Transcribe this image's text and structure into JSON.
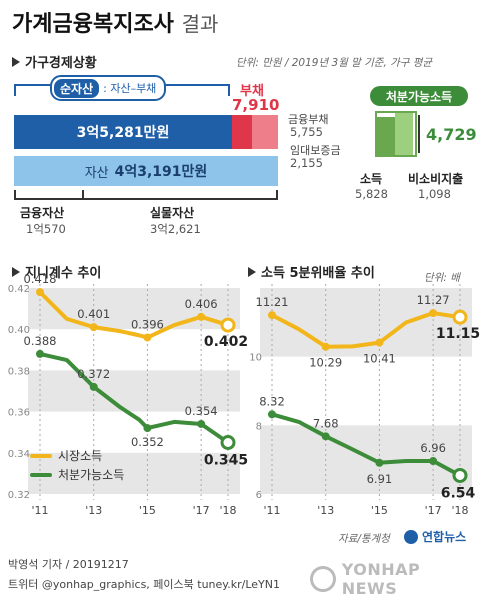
{
  "title": "가계금융복지조사",
  "subtitle": "결과",
  "assets": {
    "section_title": "가구경제상황",
    "note": "단위: 만원 / 2019년 3월 말 기준, 가구 평균",
    "net_assets_label": "순자산",
    "net_assets_formula": ": 자산–부채",
    "net_assets_value": "3억5,281만원",
    "debt_label": "부채",
    "debt_value": "7,910",
    "total_assets_prefix": "자산",
    "total_assets_value": "4억3,191만원",
    "financial_debt_label": "금융부채",
    "financial_debt_value": "5,755",
    "deposit_label": "임대보증금",
    "deposit_value": "2,155",
    "financial_assets_label": "금융자산",
    "financial_assets_value": "1억570",
    "real_assets_label": "실물자산",
    "real_assets_value": "3억2,621",
    "disposable_label": "처분가능소득",
    "disposable_value": "4,729",
    "income_label": "소득",
    "income_value": "5,828",
    "nonconsumption_label": "비소비지출",
    "nonconsumption_value": "1,098"
  },
  "chart_data": [
    {
      "type": "line",
      "title": "지니계수 추이",
      "categories": [
        "'11",
        "'13",
        "'15",
        "'17",
        "'18"
      ],
      "x": [
        2011,
        2013,
        2015,
        2017,
        2018
      ],
      "ylim": [
        0.32,
        0.42
      ],
      "yticks": [
        "0.42",
        "0.40",
        "0.38",
        "0.36",
        "0.34",
        "0.32"
      ],
      "series": [
        {
          "name": "시장소득",
          "color": "#f2b61b",
          "values": [
            0.418,
            0.405,
            0.401,
            0.399,
            0.397,
            0.396,
            0.402,
            0.406,
            0.402
          ],
          "x": [
            2011,
            2012,
            2013,
            2014,
            2014.7,
            2015,
            2016,
            2017,
            2018
          ],
          "labels": {
            "0": "0.418",
            "2": "0.401",
            "5": "0.396",
            "7": "0.406",
            "8": "0.402"
          }
        },
        {
          "name": "처분가능소득",
          "color": "#3c8c3a",
          "values": [
            0.388,
            0.385,
            0.372,
            0.362,
            0.356,
            0.352,
            0.355,
            0.354,
            0.345
          ],
          "x": [
            2011,
            2012,
            2013,
            2014,
            2014.7,
            2015,
            2016,
            2017,
            2018
          ],
          "labels": {
            "0": "0.388",
            "2": "0.372",
            "5": "0.352",
            "7": "0.354",
            "8": "0.345"
          }
        }
      ],
      "legend": "bottom-left"
    },
    {
      "type": "line",
      "title": "소득 5분위배율 추이",
      "unit": "단위: 배",
      "categories": [
        "'11",
        "'13",
        "'15",
        "'17",
        "'18"
      ],
      "x": [
        2011,
        2013,
        2015,
        2017,
        2018
      ],
      "yticks": [
        "10",
        "8",
        "6"
      ],
      "ylim": [
        6,
        12
      ],
      "series": [
        {
          "name": "시장소득",
          "color": "#f2b61b",
          "values": [
            11.21,
            10.8,
            10.29,
            10.3,
            10.41,
            11.0,
            11.27,
            11.15
          ],
          "x": [
            2011,
            2012,
            2013,
            2014,
            2015,
            2016,
            2017,
            2018
          ],
          "labels": {
            "0": "11.21",
            "2": "10.29",
            "4": "10.41",
            "6": "11.27",
            "7": "11.15"
          }
        },
        {
          "name": "처분가능소득",
          "color": "#3c8c3a",
          "values": [
            8.32,
            8.1,
            7.68,
            7.3,
            6.91,
            6.96,
            6.96,
            6.54
          ],
          "x": [
            2011,
            2012,
            2013,
            2014,
            2015,
            2016,
            2017,
            2018
          ],
          "labels": {
            "0": "8.32",
            "2": "7.68",
            "4": "6.91",
            "6": "6.96",
            "7": "6.54"
          }
        }
      ]
    }
  ],
  "source": "자료/통계청",
  "logo_text": "연합뉴스",
  "credit": "박영석 기자 / 20191217",
  "social": "트위터 @yonhap_graphics, 페이스북 tuney.kr/LeYN1",
  "watermark": "YONHAP NEWS"
}
